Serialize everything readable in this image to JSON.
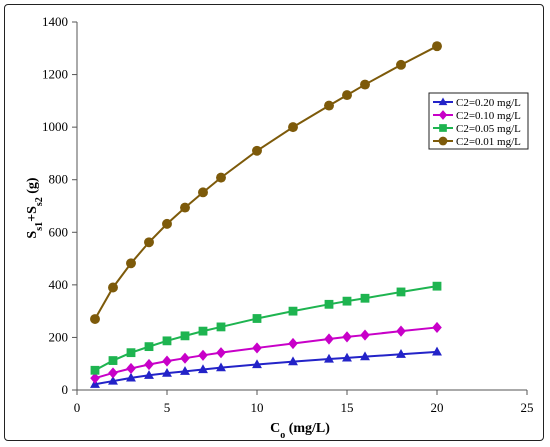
{
  "chart_data": {
    "type": "line",
    "title": "",
    "xlabel": "C",
    "xlabel_sub": "o",
    "xlabel_units": " (mg/L)",
    "ylabel_parts": [
      {
        "t": "S"
      },
      {
        "t": "s1",
        "sub": true
      },
      {
        "t": "+S"
      },
      {
        "t": "s2",
        "sub": true
      },
      {
        "t": " (g)"
      }
    ],
    "xlim": [
      0,
      25
    ],
    "ylim": [
      0,
      1400
    ],
    "xticks": [
      0,
      5,
      10,
      15,
      20,
      25
    ],
    "yticks": [
      0,
      200,
      400,
      600,
      800,
      1000,
      1200,
      1400
    ],
    "grid": false,
    "legend_position": "right",
    "series": [
      {
        "name": "C2=0.20 mg/L",
        "color": "#2323c8",
        "marker": "triangle",
        "x": [
          1,
          2,
          3,
          4,
          5,
          6,
          7,
          8,
          10,
          12,
          14,
          15,
          16,
          18,
          20
        ],
        "y": [
          22,
          34,
          46,
          56,
          64,
          71,
          78,
          85,
          97,
          108,
          118,
          122,
          127,
          136,
          145
        ]
      },
      {
        "name": "C2=0.10 mg/L",
        "color": "#c800c8",
        "marker": "diamond",
        "x": [
          1,
          2,
          3,
          4,
          5,
          6,
          7,
          8,
          10,
          12,
          14,
          15,
          16,
          18,
          20
        ],
        "y": [
          45,
          65,
          82,
          97,
          110,
          121,
          132,
          142,
          160,
          177,
          194,
          202,
          209,
          224,
          238
        ]
      },
      {
        "name": "C2=0.05 mg/L",
        "color": "#1eb450",
        "marker": "square",
        "x": [
          1,
          2,
          3,
          4,
          5,
          6,
          7,
          8,
          10,
          12,
          14,
          15,
          16,
          18,
          20
        ],
        "y": [
          75,
          112,
          142,
          165,
          187,
          206,
          224,
          240,
          272,
          300,
          326,
          338,
          349,
          373,
          395
        ]
      },
      {
        "name": "C2=0.01 mg/L",
        "color": "#7d5a0a",
        "marker": "circle",
        "x": [
          1,
          2,
          3,
          4,
          5,
          6,
          7,
          8,
          10,
          12,
          14,
          15,
          16,
          18,
          20
        ],
        "y": [
          270,
          390,
          482,
          562,
          632,
          694,
          752,
          808,
          910,
          1000,
          1082,
          1122,
          1162,
          1237,
          1308
        ]
      }
    ]
  }
}
